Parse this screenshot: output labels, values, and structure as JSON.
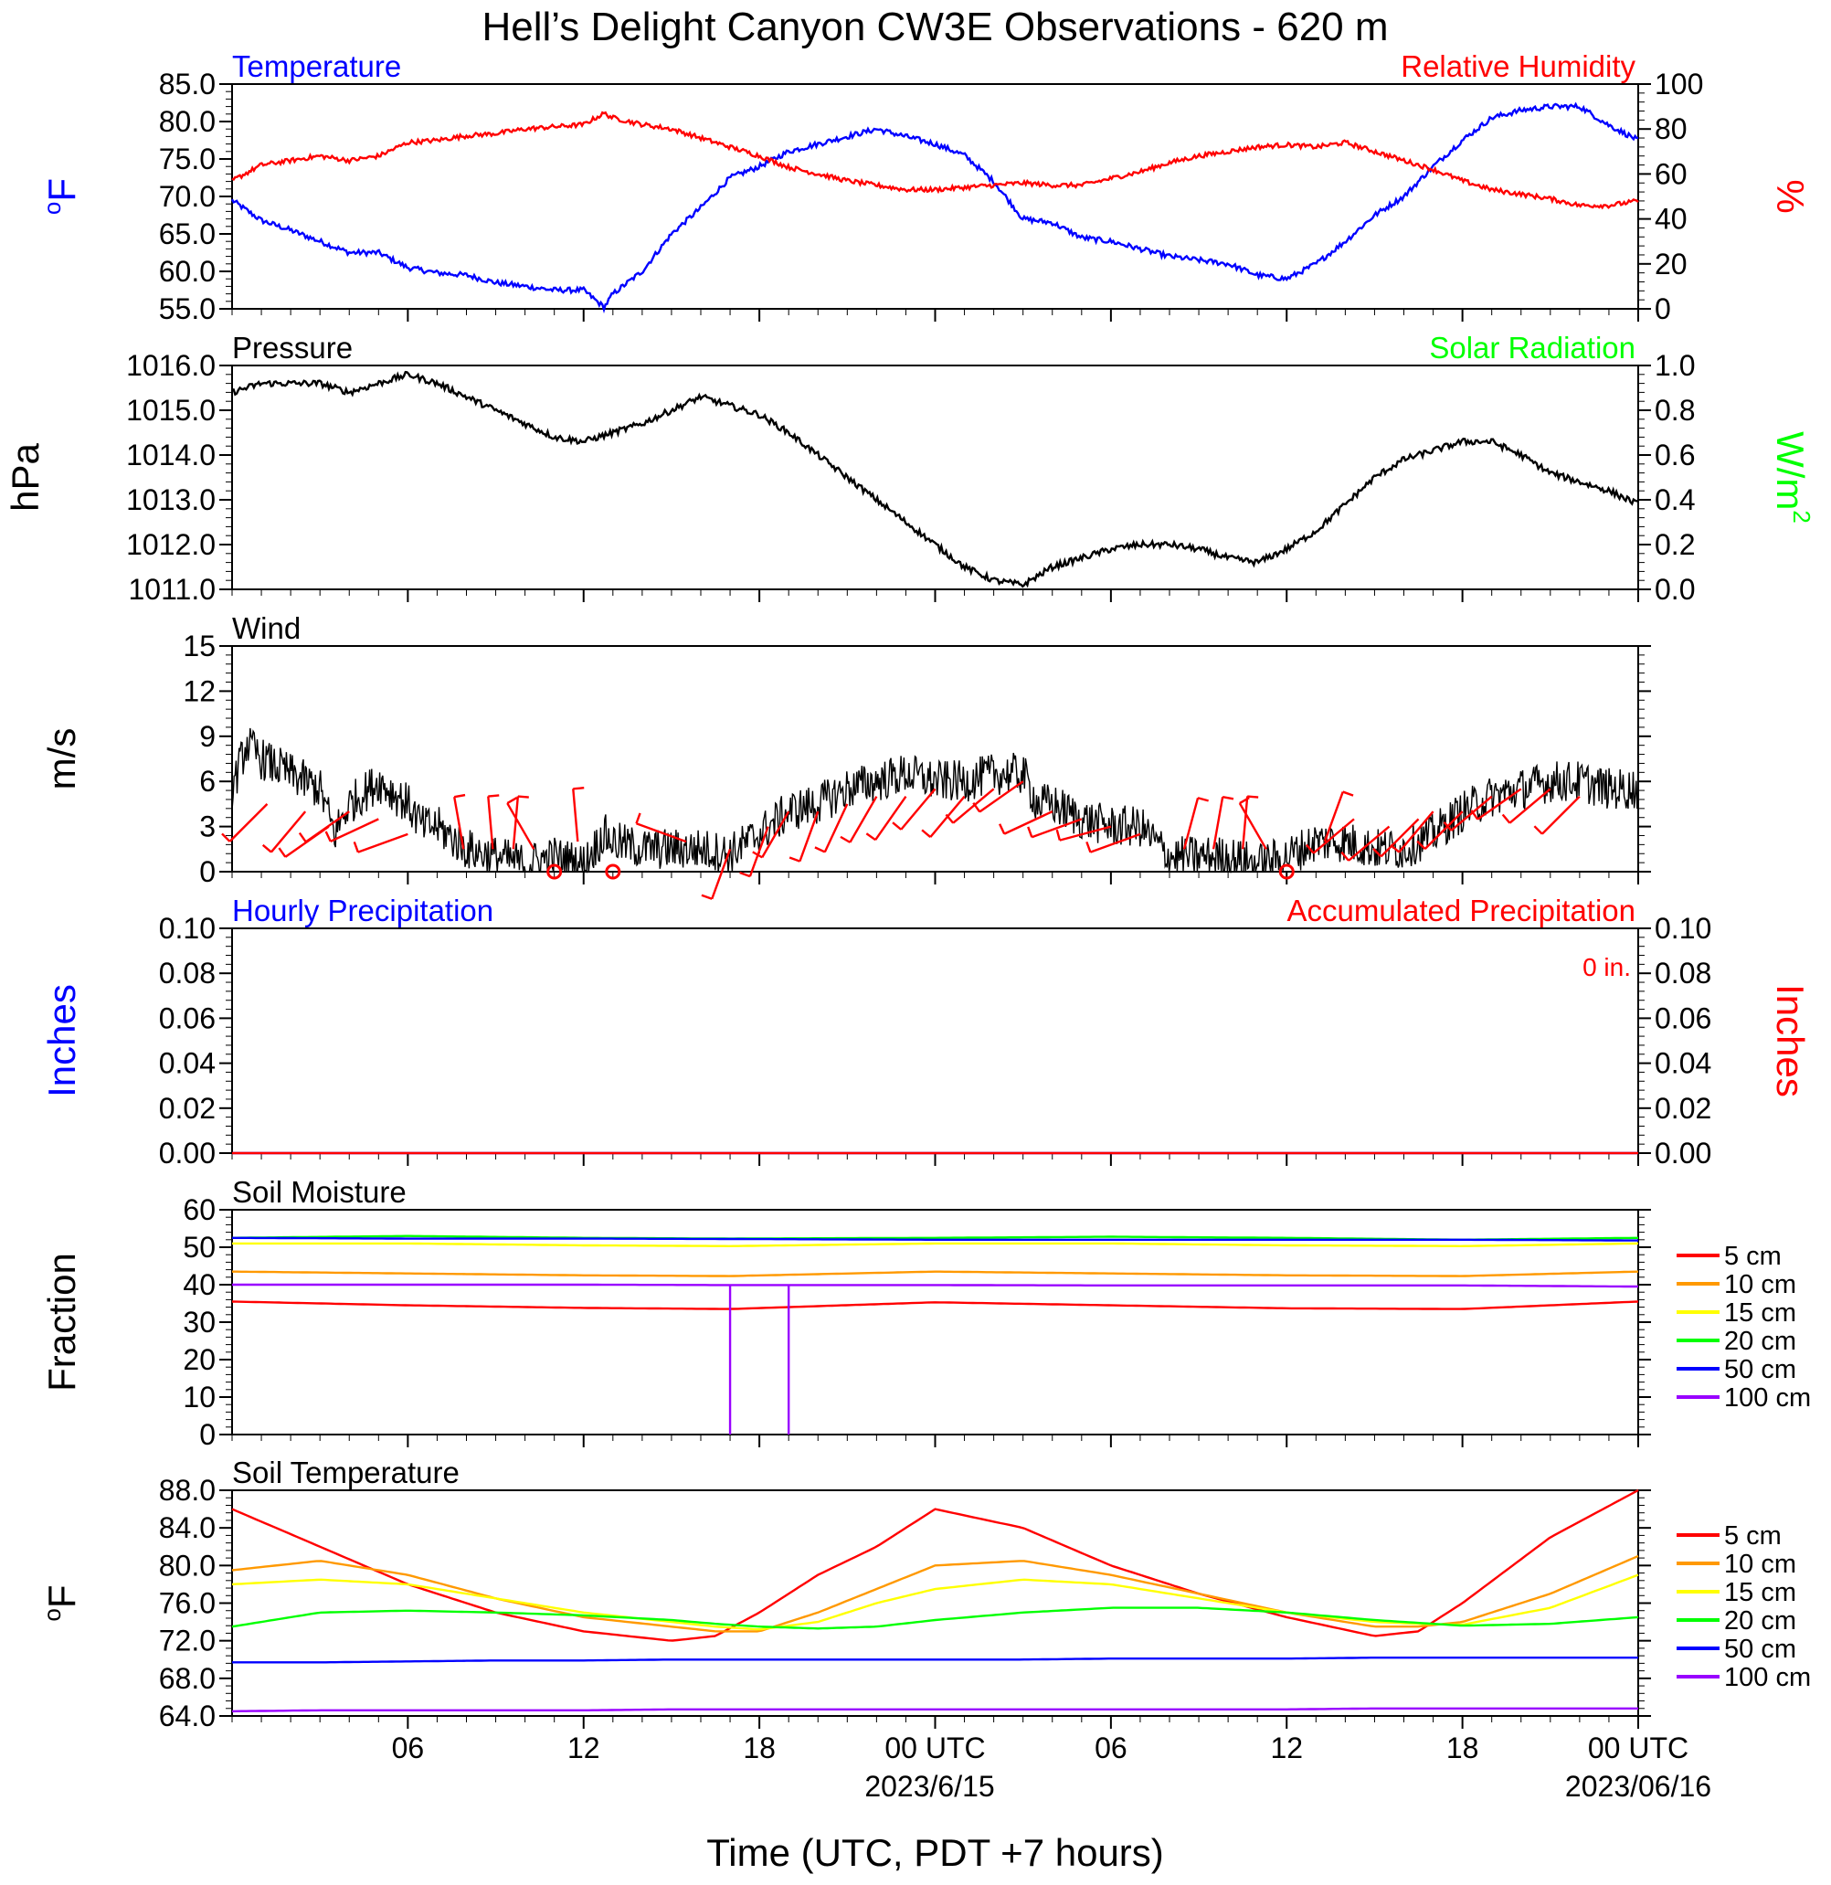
{
  "title": "Hell’s Delight Canyon CW3E Observations - 620 m",
  "xlabel": "Time (UTC, PDT +7 hours)",
  "x_ticks": [
    "06",
    "12",
    "18",
    "00 UTC",
    "06",
    "12",
    "18",
    "00 UTC"
  ],
  "x_dates": [
    "2023/6/15",
    "2023/06/16"
  ],
  "colors": {
    "blue": "#0000ff",
    "red": "#ff0000",
    "green": "#00ff00",
    "black": "#000000"
  },
  "soil_legend_colors": [
    "#ff0000",
    "#ff9900",
    "#ffff00",
    "#00ff00",
    "#0000ff",
    "#9900ff"
  ],
  "chart_data": [
    {
      "id": "temp_rh",
      "type": "line",
      "title_left": "Temperature",
      "title_right": "Relative Humidity",
      "ylabel_left": "oF",
      "ylabel_right": "%",
      "ylim_left": [
        55,
        85
      ],
      "ylim_right": [
        0,
        100
      ],
      "yticks_left": [
        "55.0",
        "60.0",
        "65.0",
        "70.0",
        "75.0",
        "80.0",
        "85.0"
      ],
      "yticks_right": [
        "0",
        "20",
        "40",
        "60",
        "80",
        "100"
      ],
      "x_hours": [
        0,
        1,
        2,
        3,
        4,
        5,
        6,
        7,
        8,
        9,
        10,
        11,
        12,
        12.7,
        13,
        14,
        15,
        16,
        17,
        18,
        19,
        20,
        21,
        22,
        23,
        24,
        25,
        26,
        27,
        28,
        29,
        30,
        31,
        32,
        33,
        34,
        35,
        36,
        37,
        38,
        39,
        40,
        41,
        42,
        43,
        44,
        45,
        46,
        47,
        48
      ],
      "series": [
        {
          "axis": "left",
          "color": "#0000ff",
          "values": [
            69.5,
            66.8,
            65.5,
            64.0,
            62.5,
            62.5,
            60.5,
            59.8,
            59.5,
            58.5,
            58.0,
            57.5,
            57.5,
            55.2,
            57.0,
            60.0,
            65.0,
            68.5,
            72.5,
            74.0,
            76.0,
            77.0,
            78.0,
            79.0,
            78.0,
            77.0,
            75.5,
            72.0,
            67.0,
            66.5,
            64.5,
            64.0,
            63.0,
            62.0,
            61.5,
            61.0,
            59.5,
            59.0,
            61.0,
            64.0,
            67.5,
            70.0,
            74.0,
            77.5,
            80.5,
            81.5,
            82.0,
            82.0,
            79.5,
            77.5
          ]
        },
        {
          "axis": "right",
          "color": "#ff0000",
          "values": [
            57,
            64,
            66,
            68,
            66,
            68,
            74,
            75,
            77,
            78,
            80,
            81,
            82,
            87,
            85,
            82,
            80,
            76,
            72,
            68,
            63,
            60,
            57,
            55,
            53,
            53,
            54,
            55,
            56,
            55,
            55,
            58,
            61,
            65,
            68,
            70,
            72,
            73,
            72,
            74,
            70,
            66,
            62,
            57,
            53,
            51,
            49,
            46,
            46,
            48
          ]
        }
      ]
    },
    {
      "id": "pressure",
      "type": "line",
      "title_left": "Pressure",
      "title_right": "Solar Radiation",
      "ylabel_left": "hPa",
      "ylabel_right": "W/m",
      "ylabel_right_sup": "2",
      "ylim_left": [
        1011,
        1016
      ],
      "ylim_right": [
        0,
        1
      ],
      "yticks_left": [
        "1011.0",
        "1012.0",
        "1013.0",
        "1014.0",
        "1015.0",
        "1016.0"
      ],
      "yticks_right": [
        "0.0",
        "0.2",
        "0.4",
        "0.6",
        "0.8",
        "1.0"
      ],
      "x_hours": [
        0,
        1,
        2,
        3,
        4,
        5,
        6,
        7,
        8,
        9,
        10,
        11,
        12,
        13,
        14,
        15,
        16,
        17,
        18,
        19,
        20,
        21,
        22,
        23,
        24,
        25,
        26,
        27,
        28,
        29,
        30,
        31,
        32,
        33,
        34,
        35,
        36,
        37,
        38,
        39,
        40,
        41,
        42,
        43,
        44,
        45,
        46,
        47,
        48
      ],
      "series": [
        {
          "axis": "left",
          "color": "#000000",
          "values": [
            1015.4,
            1015.6,
            1015.6,
            1015.6,
            1015.4,
            1015.6,
            1015.8,
            1015.6,
            1015.3,
            1015.0,
            1014.7,
            1014.4,
            1014.3,
            1014.5,
            1014.7,
            1015.0,
            1015.3,
            1015.1,
            1014.9,
            1014.5,
            1014.0,
            1013.5,
            1013.0,
            1012.5,
            1012.0,
            1011.5,
            1011.2,
            1011.1,
            1011.5,
            1011.7,
            1011.9,
            1012.0,
            1012.0,
            1011.9,
            1011.7,
            1011.6,
            1011.9,
            1012.3,
            1012.9,
            1013.5,
            1013.9,
            1014.1,
            1014.3,
            1014.3,
            1014.0,
            1013.6,
            1013.4,
            1013.2,
            1012.9
          ]
        }
      ]
    },
    {
      "id": "wind",
      "type": "line",
      "title_left": "Wind",
      "ylabel_left": "m/s",
      "ylim_left": [
        0,
        15
      ],
      "yticks_left": [
        "0",
        "3",
        "6",
        "9",
        "12",
        "15"
      ],
      "x_hours": [
        0,
        0.5,
        1,
        2,
        3,
        3.5,
        4,
        5,
        6,
        6.5,
        7,
        8,
        9,
        10,
        11,
        12,
        12.7,
        13,
        14,
        15,
        16,
        17,
        18,
        19,
        20,
        21,
        22,
        23,
        24,
        25,
        26,
        27,
        27.5,
        28,
        29,
        30,
        31,
        32,
        33,
        34,
        35,
        36,
        37,
        38,
        39,
        40,
        41,
        42,
        43,
        44,
        45,
        46,
        47,
        48
      ],
      "series": [
        {
          "axis": "left",
          "color": "#000000",
          "values": [
            5.5,
            8.5,
            7.5,
            6.5,
            5.5,
            2.5,
            4.5,
            6.0,
            4.5,
            3.0,
            3.0,
            1.5,
            1.0,
            0.5,
            1.0,
            0.5,
            2.5,
            2.0,
            1.5,
            1.5,
            1.5,
            1.2,
            2.5,
            4.0,
            4.5,
            5.5,
            6.0,
            6.5,
            6.0,
            6.0,
            6.5,
            6.5,
            4.5,
            4.5,
            3.5,
            3.0,
            3.0,
            1.0,
            1.0,
            1.0,
            0.5,
            1.0,
            2.0,
            2.0,
            1.5,
            1.5,
            2.5,
            4.0,
            5.0,
            5.5,
            6.0,
            6.0,
            5.5,
            5.5
          ]
        }
      ],
      "calm_hours": [
        11,
        13,
        36
      ],
      "barbs": [
        {
          "hour": 1.2,
          "speed": 4.5,
          "dir": 225
        },
        {
          "hour": 2.5,
          "speed": 4.0,
          "dir": 220
        },
        {
          "hour": 3.3,
          "speed": 3.0,
          "dir": 235
        },
        {
          "hour": 4.0,
          "speed": 4.0,
          "dir": 235
        },
        {
          "hour": 5.0,
          "speed": 3.5,
          "dir": 245
        },
        {
          "hour": 6.0,
          "speed": 2.5,
          "dir": 250
        },
        {
          "hour": 7.9,
          "speed": 1.5,
          "dir": 350
        },
        {
          "hour": 8.9,
          "speed": 1.5,
          "dir": 355
        },
        {
          "hour": 9.6,
          "speed": 1.5,
          "dir": 5
        },
        {
          "hour": 10.3,
          "speed": 1.5,
          "dir": 330
        },
        {
          "hour": 11.0,
          "speed": 0.5,
          "dir": 0
        },
        {
          "hour": 11.8,
          "speed": 2.0,
          "dir": 355
        },
        {
          "hour": 13.0,
          "speed": 0.5,
          "dir": 0
        },
        {
          "hour": 15.5,
          "speed": 2.0,
          "dir": 290
        },
        {
          "hour": 17.0,
          "speed": 1.5,
          "dir": 200
        },
        {
          "hour": 18.3,
          "speed": 3.0,
          "dir": 200
        },
        {
          "hour": 19.0,
          "speed": 4.0,
          "dir": 210
        },
        {
          "hour": 20.0,
          "speed": 4.0,
          "dir": 200
        },
        {
          "hour": 21.0,
          "speed": 4.5,
          "dir": 205
        },
        {
          "hour": 22.0,
          "speed": 5.0,
          "dir": 210
        },
        {
          "hour": 23.0,
          "speed": 5.0,
          "dir": 215
        },
        {
          "hour": 24.0,
          "speed": 5.5,
          "dir": 220
        },
        {
          "hour": 25.0,
          "speed": 5.0,
          "dir": 220
        },
        {
          "hour": 26.0,
          "speed": 5.5,
          "dir": 230
        },
        {
          "hour": 27.0,
          "speed": 6.0,
          "dir": 235
        },
        {
          "hour": 28.0,
          "speed": 4.0,
          "dir": 245
        },
        {
          "hour": 29.0,
          "speed": 3.5,
          "dir": 250
        },
        {
          "hour": 30.0,
          "speed": 3.0,
          "dir": 255
        },
        {
          "hour": 31.0,
          "speed": 2.5,
          "dir": 250
        },
        {
          "hour": 32.5,
          "speed": 1.5,
          "dir": 15
        },
        {
          "hour": 33.5,
          "speed": 1.5,
          "dir": 10
        },
        {
          "hour": 34.5,
          "speed": 1.5,
          "dir": 5
        },
        {
          "hour": 35.3,
          "speed": 1.5,
          "dir": 330
        },
        {
          "hour": 36.0,
          "speed": 0.5,
          "dir": 0
        },
        {
          "hour": 37.3,
          "speed": 2.0,
          "dir": 20
        },
        {
          "hour": 38.3,
          "speed": 3.5,
          "dir": 230
        },
        {
          "hour": 39.5,
          "speed": 3.0,
          "dir": 230
        },
        {
          "hour": 40.5,
          "speed": 3.5,
          "dir": 225
        },
        {
          "hour": 41.0,
          "speed": 4.0,
          "dir": 220
        },
        {
          "hour": 42.0,
          "speed": 4.0,
          "dir": 225
        },
        {
          "hour": 43.0,
          "speed": 5.0,
          "dir": 230
        },
        {
          "hour": 44.0,
          "speed": 5.5,
          "dir": 235
        },
        {
          "hour": 45.0,
          "speed": 5.5,
          "dir": 230
        },
        {
          "hour": 46.0,
          "speed": 5.0,
          "dir": 225
        }
      ]
    },
    {
      "id": "precip",
      "type": "line",
      "title_left": "Hourly Precipitation",
      "title_right": "Accumulated Precipitation",
      "annotation": "0 in.",
      "ylabel_left": "Inches",
      "ylabel_right": "Inches",
      "ylim_left": [
        0,
        0.1
      ],
      "ylim_right": [
        0,
        0.1
      ],
      "yticks_left": [
        "0.00",
        "0.02",
        "0.04",
        "0.06",
        "0.08",
        "0.10"
      ],
      "yticks_right": [
        "0.00",
        "0.02",
        "0.04",
        "0.06",
        "0.08",
        "0.10"
      ],
      "x_hours": [
        0,
        48
      ],
      "series": [
        {
          "axis": "left",
          "color": "#0000ff",
          "values": [
            0,
            0
          ]
        },
        {
          "axis": "right",
          "color": "#ff0000",
          "values": [
            0,
            0
          ]
        }
      ]
    },
    {
      "id": "soil_moisture",
      "type": "line",
      "title_left": "Soil Moisture",
      "ylabel_left": "Fraction",
      "ylim_left": [
        0,
        60
      ],
      "yticks_left": [
        "0",
        "10",
        "20",
        "30",
        "40",
        "50",
        "60"
      ],
      "x_hours": [
        0,
        6,
        12,
        17,
        24,
        30,
        36,
        42,
        48
      ],
      "series": [
        {
          "name": "5 cm",
          "color": "#ff0000",
          "values": [
            35.5,
            34.5,
            33.8,
            33.5,
            35.3,
            34.5,
            33.7,
            33.5,
            35.5
          ]
        },
        {
          "name": "10 cm",
          "color": "#ff9900",
          "values": [
            43.5,
            43.0,
            42.5,
            42.3,
            43.5,
            43.0,
            42.5,
            42.3,
            43.5
          ]
        },
        {
          "name": "15 cm",
          "color": "#ffff00",
          "values": [
            51.0,
            51.0,
            50.5,
            50.3,
            51.0,
            51.0,
            50.5,
            50.3,
            51.0
          ]
        },
        {
          "name": "20 cm",
          "color": "#00ff00",
          "values": [
            52.5,
            53.0,
            52.5,
            52.3,
            52.5,
            52.8,
            52.5,
            52.0,
            52.5
          ]
        },
        {
          "name": "50 cm",
          "color": "#0000ff",
          "values": [
            52.5,
            52.3,
            52.3,
            52.2,
            52.0,
            52.0,
            52.0,
            52.0,
            51.8
          ]
        },
        {
          "name": "100 cm",
          "color": "#9900ff",
          "values": [
            40.0,
            40.0,
            40.0,
            39.9,
            39.9,
            39.8,
            39.8,
            39.8,
            39.5
          ]
        }
      ],
      "dropouts_100cm_hours": [
        17,
        19
      ]
    },
    {
      "id": "soil_temperature",
      "type": "line",
      "title_left": "Soil Temperature",
      "ylabel_left": "oF",
      "ylim_left": [
        64,
        88
      ],
      "yticks_left": [
        "64.0",
        "68.0",
        "72.0",
        "76.0",
        "80.0",
        "84.0",
        "88.0"
      ],
      "x_hours": [
        0,
        3,
        6,
        9,
        12,
        15,
        16.5,
        18,
        20,
        22,
        24,
        27,
        30,
        33,
        36,
        39,
        40.5,
        42,
        45,
        48
      ],
      "series": [
        {
          "name": "5 cm",
          "color": "#ff0000",
          "values": [
            86,
            82,
            78,
            75,
            73,
            72,
            72.5,
            75,
            79,
            82,
            86,
            84,
            80,
            77,
            74.5,
            72.5,
            73,
            76,
            83,
            88
          ]
        },
        {
          "name": "10 cm",
          "color": "#ff9900",
          "values": [
            79.5,
            80.5,
            79,
            76.5,
            74.5,
            73.5,
            73,
            73,
            75,
            77.5,
            80,
            80.5,
            79,
            77,
            75,
            73.5,
            73.5,
            74,
            77,
            81
          ]
        },
        {
          "name": "15 cm",
          "color": "#ffff00",
          "values": [
            78,
            78.5,
            78,
            76.5,
            75,
            74,
            73.5,
            73.2,
            74,
            76,
            77.5,
            78.5,
            78,
            76.5,
            75,
            74,
            73.8,
            73.7,
            75.5,
            79
          ]
        },
        {
          "name": "20 cm",
          "color": "#00ff00",
          "values": [
            73.5,
            75,
            75.2,
            75,
            74.7,
            74.2,
            73.8,
            73.5,
            73.3,
            73.5,
            74.2,
            75,
            75.5,
            75.5,
            75,
            74.2,
            73.9,
            73.6,
            73.8,
            74.5
          ]
        },
        {
          "name": "50 cm",
          "color": "#0000ff",
          "values": [
            69.7,
            69.7,
            69.8,
            69.9,
            69.9,
            70,
            70,
            70,
            70,
            70,
            70,
            70,
            70.1,
            70.1,
            70.1,
            70.2,
            70.2,
            70.2,
            70.2,
            70.2
          ]
        },
        {
          "name": "100 cm",
          "color": "#9900ff",
          "values": [
            64.5,
            64.6,
            64.6,
            64.6,
            64.6,
            64.7,
            64.7,
            64.7,
            64.7,
            64.7,
            64.7,
            64.7,
            64.7,
            64.7,
            64.7,
            64.8,
            64.8,
            64.8,
            64.8,
            64.8
          ]
        }
      ]
    }
  ]
}
